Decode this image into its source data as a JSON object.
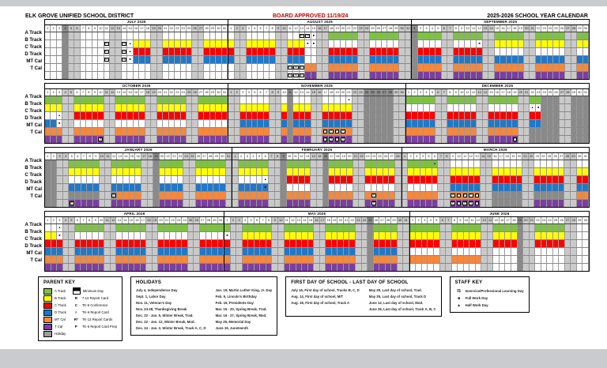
{
  "header": {
    "district": "ELK GROVE UNIFIED SCHOOL DISTRICT",
    "approved": "BOARD APPROVED 11/19/24",
    "title": "2025-2026 SCHOOL YEAR CALENDAR"
  },
  "colors": {
    "A": "#7dc243",
    "B": "#ffff00",
    "C": "#ff0000",
    "D": "#1f78c8",
    "MT": "#f6883b",
    "T": "#7b3fa0",
    "holiday": "#8a8a8a",
    "weekend": "#c9c9c9",
    "approved_red": "#c00000"
  },
  "track_keys": [
    "A",
    "B",
    "C",
    "D",
    "MT",
    "T"
  ],
  "track_labels": [
    "A Track",
    "B Track",
    "C Track",
    "D Track",
    "MT Cal",
    "T Cal"
  ],
  "months": [
    {
      "label": "JULY 2025",
      "days": 31,
      "startDow": 2,
      "band": 0,
      "hol": [
        [
          4,
          4
        ]
      ],
      "rows": {
        "A": {
          "on": []
        },
        "B": {
          "on": [
            [
              16,
              31
            ]
          ]
        },
        "C": {
          "on": [
            [
              16,
              31
            ]
          ]
        },
        "D": {
          "on": [
            [
              16,
              31
            ]
          ]
        },
        "MT": {
          "on": []
        },
        "T": {
          "on": []
        }
      },
      "marks": [
        {
          "r": "B",
          "d": 11,
          "t": "IS"
        },
        {
          "r": "C",
          "d": 11,
          "t": "IS"
        },
        {
          "r": "D",
          "d": 11,
          "t": "IS"
        },
        {
          "r": "B",
          "d": 14,
          "t": "IS"
        },
        {
          "r": "C",
          "d": 14,
          "t": "IS"
        },
        {
          "r": "D",
          "d": 14,
          "t": "IS"
        },
        {
          "r": "B",
          "d": 15,
          "t": "▲"
        },
        {
          "r": "C",
          "d": 15,
          "t": "▲"
        },
        {
          "r": "D",
          "d": 15,
          "t": "■"
        }
      ]
    },
    {
      "label": "AUGUST 2025",
      "days": 31,
      "startDow": 5,
      "band": 0,
      "hol": [],
      "rows": {
        "A": {
          "on": [
            [
              18,
              31
            ]
          ]
        },
        "B": {
          "on": [
            [
              1,
              13
            ]
          ]
        },
        "C": {
          "on": [
            [
              1,
              13
            ],
            [
              18,
              31
            ]
          ]
        },
        "D": {
          "on": [
            [
              1,
              13
            ],
            [
              18,
              31
            ]
          ]
        },
        "MT": {
          "on": [
            [
              14,
              31
            ]
          ]
        },
        "T": {
          "on": [
            [
              14,
              31
            ]
          ]
        }
      },
      "marks": [
        {
          "r": "A",
          "d": 13,
          "t": "IS"
        },
        {
          "r": "A",
          "d": 14,
          "t": "IS"
        },
        {
          "r": "A",
          "d": 15,
          "t": "■"
        },
        {
          "r": "MT",
          "d": 11,
          "t": "IS"
        },
        {
          "r": "MT",
          "d": 12,
          "t": "IS"
        },
        {
          "r": "MT",
          "d": 13,
          "t": "IS"
        },
        {
          "r": "T",
          "d": 11,
          "t": "IS"
        },
        {
          "r": "T",
          "d": 12,
          "t": "IS"
        },
        {
          "r": "T",
          "d": 13,
          "t": "IS"
        },
        {
          "r": "B",
          "d": 14,
          "t": "■"
        },
        {
          "r": "B",
          "d": 15,
          "t": "■"
        }
      ]
    },
    {
      "label": "SEPTEMBER 2025",
      "days": 30,
      "startDow": 1,
      "band": 0,
      "hol": [
        [
          1,
          1
        ]
      ],
      "rows": {
        "A": {
          "on": [
            [
              2,
              30
            ]
          ]
        },
        "B": {
          "on": [
            [
              15,
              30
            ]
          ]
        },
        "C": {
          "on": [
            [
              2,
              12
            ]
          ]
        },
        "D": {
          "on": [
            [
              2,
              30
            ]
          ]
        },
        "MT": {
          "on": [
            [
              2,
              30
            ]
          ]
        },
        "T": {
          "on": [
            [
              2,
              30
            ]
          ]
        }
      },
      "marks": [
        {
          "r": "B",
          "d": 12,
          "t": "■"
        },
        {
          "r": "C",
          "d": 12,
          "t": "▲"
        }
      ]
    },
    {
      "label": "OCTOBER 2025",
      "days": 31,
      "startDow": 3,
      "band": 1,
      "hol": [],
      "rows": {
        "A": {
          "on": [
            [
              1,
              31
            ]
          ]
        },
        "B": {
          "on": [
            [
              1,
              31
            ]
          ]
        },
        "C": {
          "on": [
            [
              6,
              31
            ]
          ]
        },
        "D": {
          "on": [
            [
              1,
              2
            ]
          ]
        },
        "MT": {
          "on": [
            [
              1,
              31
            ]
          ]
        },
        "T": {
          "on": [
            [
              1,
              31
            ]
          ]
        }
      },
      "marks": [
        {
          "r": "C",
          "d": 3,
          "t": "▲"
        },
        {
          "r": "D",
          "d": 3,
          "t": "■"
        },
        {
          "r": "T",
          "d": 10,
          "t": "IS"
        }
      ]
    },
    {
      "label": "NOVEMBER 2025",
      "days": 30,
      "startDow": 6,
      "band": 1,
      "hol": [
        [
          11,
          11
        ],
        [
          24,
          28
        ]
      ],
      "rows": {
        "A": {
          "on": []
        },
        "B": {
          "on": [
            [
              3,
              21
            ]
          ]
        },
        "C": {
          "on": [
            [
              3,
              21
            ]
          ]
        },
        "D": {
          "on": [
            [
              3,
              21
            ]
          ]
        },
        "MT": {
          "on": [
            [
              3,
              21
            ]
          ]
        },
        "T": {
          "on": [
            [
              3,
              21
            ]
          ]
        }
      },
      "marks": [
        {
          "r": "A",
          "d": 21,
          "t": "▲"
        },
        {
          "r": "MT",
          "d": 17,
          "t": "P"
        },
        {
          "r": "MT",
          "d": 18,
          "t": "P"
        },
        {
          "r": "MT",
          "d": 19,
          "t": "P"
        },
        {
          "r": "MT",
          "d": 20,
          "t": "P"
        },
        {
          "r": "T",
          "d": 17,
          "t": "R"
        },
        {
          "r": "T",
          "d": 18,
          "t": "R"
        },
        {
          "r": "T",
          "d": 19,
          "t": "R"
        },
        {
          "r": "T",
          "d": 20,
          "t": "R"
        }
      ]
    },
    {
      "label": "DECEMBER 2025",
      "days": 31,
      "startDow": 1,
      "band": 1,
      "hol": [],
      "rows": {
        "A": {
          "on": [
            [
              1,
              23
            ]
          ],
          "hol": [
            [
              24,
              31
            ]
          ]
        },
        "B": {
          "on": [],
          "hol": [
            [
              24,
              31
            ]
          ]
        },
        "C": {
          "on": [
            [
              1,
              23
            ]
          ],
          "hol": [
            [
              24,
              31
            ]
          ]
        },
        "D": {
          "on": [
            [
              1,
              23
            ]
          ],
          "hol": [
            [
              24,
              31
            ]
          ]
        },
        "MT": {
          "on": [
            [
              1,
              19
            ]
          ],
          "hol": [
            [
              22,
              31
            ]
          ]
        },
        "T": {
          "on": [
            [
              1,
              19
            ]
          ],
          "hol": [
            [
              22,
              31
            ]
          ]
        }
      },
      "marks": [
        {
          "r": "B",
          "d": 22,
          "t": "▲"
        },
        {
          "r": "B",
          "d": 23,
          "t": "■"
        },
        {
          "r": "T",
          "d": 19,
          "t": "R"
        }
      ]
    },
    {
      "label": "JANUARY 2026",
      "days": 31,
      "startDow": 4,
      "band": 2,
      "hol": [
        [
          19,
          19
        ]
      ],
      "rows": {
        "A": {
          "on": [
            [
              5,
              30
            ]
          ],
          "hol": [
            [
              1,
              2
            ]
          ]
        },
        "B": {
          "on": [
            [
              5,
              30
            ]
          ],
          "hol": [
            [
              1,
              2
            ]
          ]
        },
        "C": {
          "on": [],
          "hol": [
            [
              1,
              2
            ]
          ]
        },
        "D": {
          "on": [
            [
              5,
              30
            ]
          ],
          "hol": [
            [
              1,
              2
            ]
          ]
        },
        "MT": {
          "on": [
            [
              13,
              30
            ]
          ],
          "hol": [
            [
              1,
              12
            ]
          ]
        },
        "T": {
          "on": [
            [
              5,
              30
            ]
          ],
          "hol": [
            [
              1,
              2
            ]
          ]
        }
      },
      "marks": [
        {
          "r": "T",
          "d": 5,
          "t": "IS"
        },
        {
          "r": "MT",
          "d": 12,
          "t": "IS"
        }
      ]
    },
    {
      "label": "FEBRUARY 2026",
      "days": 28,
      "startDow": 0,
      "band": 2,
      "hol": [
        [
          9,
          9
        ],
        [
          16,
          16
        ]
      ],
      "rows": {
        "A": {
          "on": [
            [
              2,
              27
            ]
          ]
        },
        "B": {
          "on": [
            [
              2,
              27
            ]
          ]
        },
        "C": {
          "on": [
            [
              10,
              27
            ]
          ]
        },
        "D": {
          "on": [
            [
              2,
              6
            ]
          ]
        },
        "MT": {
          "on": [
            [
              2,
              27
            ]
          ]
        },
        "T": {
          "on": [
            [
              2,
              27
            ]
          ]
        }
      },
      "marks": [
        {
          "r": "C",
          "d": 6,
          "t": "▲"
        },
        {
          "r": "D",
          "d": 6,
          "t": "■"
        },
        {
          "r": "MT",
          "d": 24,
          "t": "P"
        },
        {
          "r": "T",
          "d": 24,
          "t": "R"
        }
      ]
    },
    {
      "label": "MARCH 2026",
      "days": 31,
      "startDow": 0,
      "band": 2,
      "hol": [],
      "rows": {
        "A": {
          "on": [
            [
              2,
              6
            ]
          ]
        },
        "B": {
          "on": [
            [
              2,
              31
            ]
          ]
        },
        "C": {
          "on": [
            [
              2,
              31
            ]
          ]
        },
        "D": {
          "on": [
            [
              9,
              31
            ]
          ]
        },
        "MT": {
          "on": [
            [
              2,
              13
            ],
            [
              30,
              31
            ]
          ],
          "hol": [
            [
              16,
              27
            ]
          ]
        },
        "T": {
          "on": [
            [
              2,
              13
            ],
            [
              23,
              31
            ]
          ],
          "hol": [
            [
              16,
              20
            ]
          ]
        }
      },
      "marks": [
        {
          "r": "A",
          "d": 6,
          "t": "▲"
        },
        {
          "r": "MT",
          "d": 9,
          "t": "P"
        },
        {
          "r": "MT",
          "d": 10,
          "t": "P"
        },
        {
          "r": "MT",
          "d": 11,
          "t": "P"
        },
        {
          "r": "MT",
          "d": 12,
          "t": "P"
        },
        {
          "r": "MT",
          "d": 13,
          "t": "P"
        },
        {
          "r": "T",
          "d": 9,
          "t": "R"
        },
        {
          "r": "T",
          "d": 10,
          "t": "R"
        },
        {
          "r": "T",
          "d": 11,
          "t": "R"
        },
        {
          "r": "T",
          "d": 12,
          "t": "R"
        },
        {
          "r": "T",
          "d": 13,
          "t": "R"
        }
      ]
    },
    {
      "label": "APRIL 2026",
      "days": 30,
      "startDow": 3,
      "band": 3,
      "hol": [],
      "rows": {
        "A": {
          "on": [
            [
              6,
              30
            ]
          ]
        },
        "B": {
          "on": [
            [
              1,
              2
            ]
          ]
        },
        "C": {
          "on": [
            [
              1,
              30
            ]
          ]
        },
        "D": {
          "on": [
            [
              1,
              30
            ]
          ]
        },
        "MT": {
          "on": [
            [
              1,
              30
            ]
          ]
        },
        "T": {
          "on": [
            [
              1,
              30
            ]
          ]
        }
      },
      "marks": [
        {
          "r": "A",
          "d": 3,
          "t": "▲"
        },
        {
          "r": "B",
          "d": 3,
          "t": "■"
        }
      ]
    },
    {
      "label": "MAY 2026",
      "days": 31,
      "startDow": 5,
      "band": 3,
      "hol": [
        [
          25,
          25
        ]
      ],
      "rows": {
        "A": {
          "on": [
            [
              1,
              29
            ]
          ]
        },
        "B": {
          "on": [
            [
              4,
              29
            ]
          ]
        },
        "C": {
          "on": [
            [
              1,
              29
            ]
          ]
        },
        "D": {
          "on": [
            [
              1,
              29
            ]
          ]
        },
        "MT": {
          "on": [
            [
              1,
              29
            ]
          ]
        },
        "T": {
          "on": [
            [
              1,
              29
            ]
          ]
        }
      },
      "marks": [
        {
          "r": "B",
          "d": 1,
          "t": "■"
        }
      ]
    },
    {
      "label": "JUNE 2026",
      "days": 30,
      "startDow": 1,
      "band": 3,
      "hol": [
        [
          19,
          19
        ]
      ],
      "rows": {
        "A": {
          "on": [
            [
              1,
              26
            ]
          ]
        },
        "B": {
          "on": [
            [
              1,
              26
            ]
          ]
        },
        "C": {
          "on": [
            [
              1,
              26
            ]
          ]
        },
        "D": {
          "on": []
        },
        "MT": {
          "on": [
            [
              1,
              12
            ]
          ]
        },
        "T": {
          "on": []
        }
      },
      "marks": []
    }
  ],
  "parent_key": {
    "title": "PARENT KEY",
    "tracks": [
      {
        "label": "A Track",
        "color": "#7dc243"
      },
      {
        "label": "B Track",
        "color": "#ffff00"
      },
      {
        "label": "C Track",
        "color": "#ff0000"
      },
      {
        "label": "D Track",
        "color": "#1f78c8"
      },
      {
        "label": "MT Cal",
        "color": "#f6883b"
      },
      {
        "label": "T Cal",
        "color": "#7b3fa0"
      },
      {
        "label": "Holiday",
        "color": "#9b9b9b"
      }
    ],
    "symbols": [
      {
        "sym": "minimum-day-icon",
        "label": "Minimum Day"
      },
      {
        "sym": "R",
        "label": "7-12 Report Card"
      },
      {
        "sym": "C",
        "label": "TK-6 Conference"
      },
      {
        "sym": "r",
        "label": "TK-6 Report Card"
      },
      {
        "sym": "R*",
        "label": "TK-12 Report Cards"
      },
      {
        "sym": "P",
        "label": "TK-6 Report Card Prep"
      }
    ]
  },
  "holidays_box": {
    "title": "HOLIDAYS",
    "col1": [
      "July 4, Independence Day",
      "Sept. 1, Labor Day",
      "Nov. 11, Veteran's Day",
      "Nov. 24-28, Thanksgiving Break",
      "Dec. 22 - Jan. 5, Winter Break, Trad.",
      "Dec. 22 - Jan. 12, Winter Break, Mod.",
      "Dec. 24 - Jan. 2, Winter Break, Track A, C, D"
    ],
    "col2": [
      "Jan. 19, Martin Luther King, Jr. Day",
      "Feb. 9, Lincoln's Birthday",
      "Feb. 16, Presidents Day",
      "Mar. 16 - 20, Spring Break, Trad.",
      "Mar. 16 - 27, Spring Break, Mod.",
      "May 25, Memorial Day",
      "June 19, Juneteenth"
    ]
  },
  "first_last_box": {
    "title": "FIRST DAY OF SCHOOL - LAST DAY OF SCHOOL",
    "col1": [
      "July 16, First day of school, Tracks B, C, D",
      "Aug. 14, First day of school, M/T",
      "Aug. 18, First day of school, Track A"
    ],
    "col2": [
      "May 29, Last day of school, Trad.",
      "May 29, Last day of school, Track D",
      "June 12, Last day of school, Mod.",
      "June 26, Last day of school, Track A, B, C"
    ]
  },
  "staff_key": {
    "title": "STAFF KEY",
    "items": [
      {
        "sym": "IS",
        "label": "Inservice/Professional Learning Day"
      },
      {
        "sym": "■",
        "label": "Full Work Day"
      },
      {
        "sym": "▲",
        "label": "Half Work Day"
      }
    ]
  }
}
